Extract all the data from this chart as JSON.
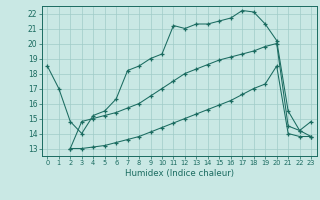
{
  "xlabel": "Humidex (Indice chaleur)",
  "xlim": [
    -0.5,
    23.5
  ],
  "ylim": [
    12.5,
    22.5
  ],
  "yticks": [
    13,
    14,
    15,
    16,
    17,
    18,
    19,
    20,
    21,
    22
  ],
  "xticks": [
    0,
    1,
    2,
    3,
    4,
    5,
    6,
    7,
    8,
    9,
    10,
    11,
    12,
    13,
    14,
    15,
    16,
    17,
    18,
    19,
    20,
    21,
    22,
    23
  ],
  "bg_color": "#c9e8e4",
  "grid_color": "#a0ccc8",
  "line_color": "#1a6b60",
  "line1_x": [
    0,
    1,
    2,
    3,
    4,
    5,
    6,
    7,
    8,
    9,
    10,
    11,
    12,
    13,
    14,
    15,
    16,
    17,
    18,
    19,
    20,
    21,
    22,
    23
  ],
  "line1_y": [
    18.5,
    17.0,
    14.8,
    14.0,
    15.2,
    15.5,
    16.3,
    18.2,
    18.5,
    19.0,
    19.3,
    21.2,
    21.0,
    21.3,
    21.3,
    21.5,
    21.7,
    22.2,
    22.1,
    21.3,
    20.2,
    15.5,
    14.2,
    14.8
  ],
  "line2_x": [
    2,
    3,
    4,
    5,
    6,
    7,
    8,
    9,
    10,
    11,
    12,
    13,
    14,
    15,
    16,
    17,
    18,
    19,
    20,
    21,
    22,
    23
  ],
  "line2_y": [
    13.0,
    13.0,
    13.1,
    13.2,
    13.4,
    13.6,
    13.8,
    14.1,
    14.4,
    14.7,
    15.0,
    15.3,
    15.6,
    15.9,
    16.2,
    16.6,
    17.0,
    17.3,
    18.5,
    14.0,
    13.8,
    13.8
  ],
  "line3_x": [
    2,
    3,
    4,
    5,
    6,
    7,
    8,
    9,
    10,
    11,
    12,
    13,
    14,
    15,
    16,
    17,
    18,
    19,
    20,
    21,
    22,
    23
  ],
  "line3_y": [
    13.0,
    14.8,
    15.0,
    15.2,
    15.4,
    15.7,
    16.0,
    16.5,
    17.0,
    17.5,
    18.0,
    18.3,
    18.6,
    18.9,
    19.1,
    19.3,
    19.5,
    19.8,
    20.0,
    14.5,
    14.2,
    13.8
  ]
}
